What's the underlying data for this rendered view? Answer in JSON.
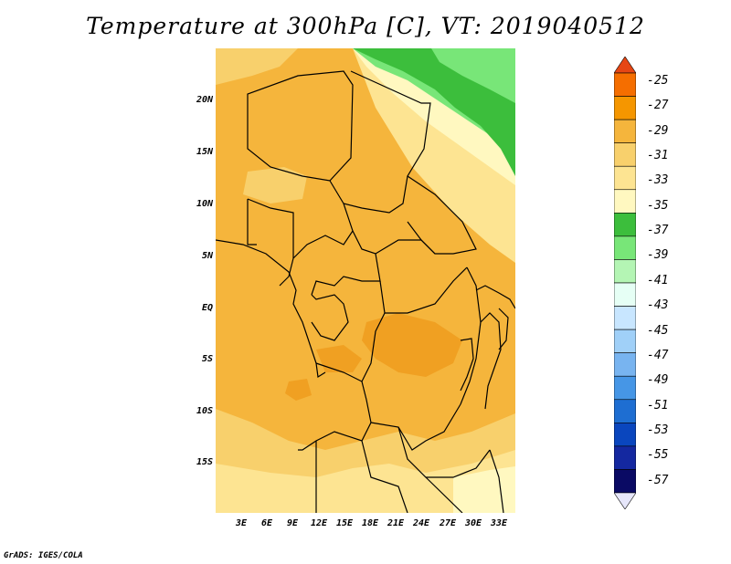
{
  "title": "Temperature at 300hPa [C], VT: 2019040512",
  "footer": "GrADS: IGES/COLA",
  "map": {
    "region": "Central Africa",
    "lat_labels": [
      "20N",
      "15N",
      "10N",
      "5N",
      "EQ",
      "5S",
      "10S",
      "15S"
    ],
    "lon_labels": [
      "3E",
      "6E",
      "9E",
      "12E",
      "15E",
      "18E",
      "21E",
      "24E",
      "27E",
      "30E",
      "33E"
    ]
  },
  "colors": {
    "c_m29": "#f5b53c",
    "c_m31": "#f8d06c",
    "c_m33": "#fde492",
    "c_m35": "#fff8c0",
    "c_m37": "#3cbe3c",
    "c_m39": "#78e678",
    "c_m27": "#f0a022"
  },
  "colorbar": {
    "labels": [
      "-25",
      "-27",
      "-29",
      "-31",
      "-33",
      "-35",
      "-37",
      "-39",
      "-41",
      "-43",
      "-45",
      "-47",
      "-49",
      "-51",
      "-53",
      "-55",
      "-57"
    ],
    "colors": [
      "#e64614",
      "#f56e00",
      "#f59600",
      "#f5b53c",
      "#f8d06c",
      "#fde492",
      "#fff8c0",
      "#3cbe3c",
      "#78e678",
      "#b4f5b4",
      "#e6fff5",
      "#c8e6ff",
      "#a0d0f8",
      "#78b4f0",
      "#4696e6",
      "#1e6ed2",
      "#0a46be",
      "#1428a0",
      "#0a0a64",
      "#e6e6fa"
    ]
  }
}
